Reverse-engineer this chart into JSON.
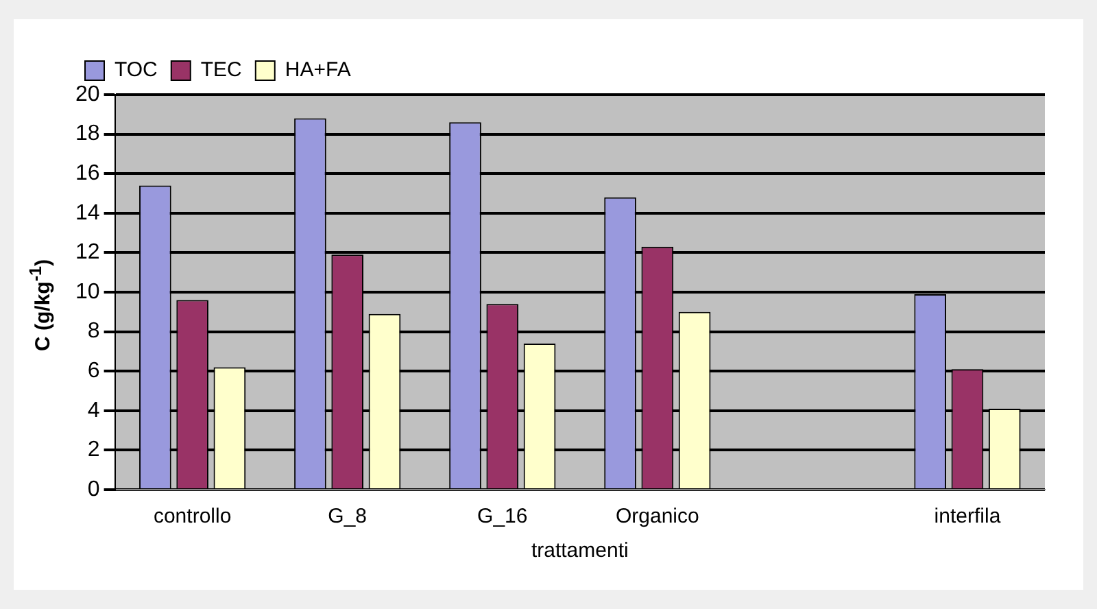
{
  "chart_data": {
    "type": "bar",
    "xlabel": "trattamenti",
    "ylabel": "C (g/kg$^{-1}$)",
    "categories": [
      "controllo",
      "G_8",
      "G_16",
      "Organico",
      null,
      "interfila"
    ],
    "series": [
      {
        "name": "TOC",
        "color": "#9999dd",
        "values": [
          15.4,
          18.8,
          18.6,
          14.8,
          null,
          9.9
        ]
      },
      {
        "name": "TEC",
        "color": "#993366",
        "values": [
          9.6,
          11.9,
          9.4,
          12.3,
          null,
          6.1
        ]
      },
      {
        "name": "HA+FA",
        "color": "#ffffcc",
        "values": [
          6.2,
          8.9,
          7.4,
          9.0,
          null,
          4.1
        ]
      }
    ],
    "ylim": [
      0,
      20
    ],
    "yticks": [
      0,
      2,
      4,
      6,
      8,
      10,
      12,
      14,
      16,
      18,
      20
    ],
    "grid": "y",
    "legend": "top left"
  }
}
